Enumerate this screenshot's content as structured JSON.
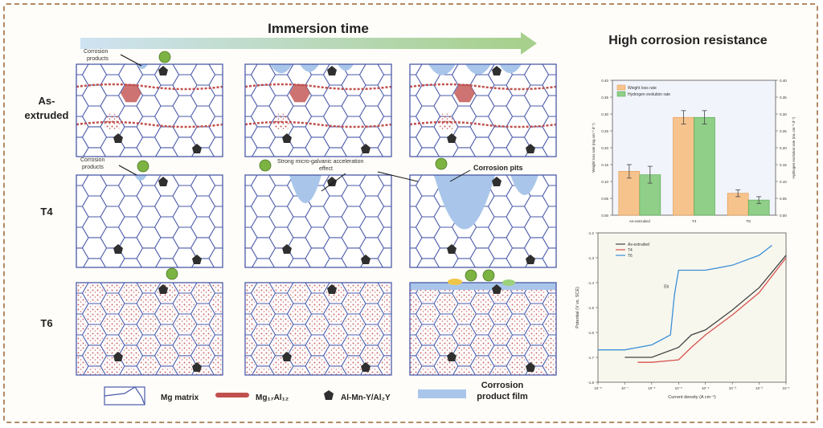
{
  "header": {
    "immersion_label": "Immersion time",
    "right_title": "High corrosion resistance"
  },
  "rows": [
    {
      "label_line1": "As-",
      "label_line2": "extruded"
    },
    {
      "label_line1": "T4",
      "label_line2": ""
    },
    {
      "label_line1": "T6",
      "label_line2": ""
    }
  ],
  "annotations": {
    "corrosion_products_top_1": "Corrosion",
    "corrosion_products_top_2": "products",
    "corrosion_products_mid_1": "Corrosion",
    "corrosion_products_mid_2": "products",
    "micro_galvanic_1": "Strong micro-galvanic acceleration",
    "micro_galvanic_2": "effect",
    "corrosion_pits": "Corrosion pits"
  },
  "legend": {
    "mg_matrix": "Mg matrix",
    "mg17al12": "Mg₁₇Al₁₂",
    "intermetallic": "Al-Mn-Y/Al₂Y",
    "film_1": "Corrosion",
    "film_2": "product  film"
  },
  "colors": {
    "grain": "#4a5aa8",
    "precipitate": "#c0504d",
    "film": "#a9c6ea",
    "particle": "#2f2f2f",
    "product_ball": "#7cb342",
    "arrow_gradient_start": "#cfe3f2",
    "arrow_gradient_end": "#a7d08c",
    "bar_weight": "#f7c38d",
    "bar_hydrogen": "#8fcf88",
    "curve_as_extruded": "#444444",
    "curve_t4": "#d9534f",
    "curve_t6": "#3c8fd6",
    "curved_arrow": "#2d6cb2"
  },
  "chart_data": [
    {
      "type": "bar",
      "categories": [
        "As-extruded",
        "T4",
        "T6"
      ],
      "series": [
        {
          "name": "Weight loss rate",
          "values": [
            0.13,
            0.29,
            0.065
          ]
        },
        {
          "name": "Hydrogen evolution rate",
          "values": [
            0.12,
            0.29,
            0.045
          ]
        }
      ],
      "errors": [
        [
          0.02,
          0.02,
          0.01
        ],
        [
          0.025,
          0.02,
          0.01
        ]
      ],
      "ylim": [
        0,
        0.4
      ],
      "yticks": [
        "0.00",
        "0.05",
        "0.10",
        "0.15",
        "0.20",
        "0.25",
        "0.30",
        "0.35",
        "0.40"
      ],
      "ylabel": "Weight loss rate (mg cm⁻² d⁻¹)",
      "ylabel_right": "Hydrogen evolution rate (mL cm⁻² d⁻¹)",
      "legend_position": "top-left"
    },
    {
      "type": "line",
      "xscale": "log",
      "xticks": [
        "10⁻⁸",
        "10⁻⁷",
        "10⁻⁶",
        "10⁻⁵",
        "10⁻⁴",
        "10⁻³",
        "10⁻²",
        "10⁻¹"
      ],
      "xlabel": "Current density (A cm⁻²)",
      "ylabel": "Potential (V vs. SCE)",
      "ylim": [
        -1.8,
        -1.2
      ],
      "yticks": [
        "-1.2",
        "-1.3",
        "-1.4",
        "-1.5",
        "-1.6",
        "-1.7",
        "-1.8"
      ],
      "annotation": "Eb",
      "series": [
        {
          "name": "As-extruded",
          "x": [
            1e-07,
            1e-06,
            1e-05,
            3e-05,
            0.0001,
            0.001,
            0.01,
            0.1
          ],
          "y": [
            -1.7,
            -1.7,
            -1.66,
            -1.61,
            -1.59,
            -1.51,
            -1.42,
            -1.29
          ]
        },
        {
          "name": "T4",
          "x": [
            3e-07,
            1e-06,
            1e-05,
            3e-05,
            0.0001,
            0.001,
            0.01,
            0.1
          ],
          "y": [
            -1.72,
            -1.72,
            -1.71,
            -1.66,
            -1.61,
            -1.53,
            -1.44,
            -1.3
          ]
        },
        {
          "name": "T6",
          "x": [
            1e-08,
            1e-07,
            1e-06,
            5e-06,
            7e-06,
            1e-05,
            3e-05,
            0.0001,
            0.001,
            0.01,
            0.03
          ],
          "y": [
            -1.67,
            -1.67,
            -1.65,
            -1.61,
            -1.45,
            -1.35,
            -1.35,
            -1.35,
            -1.33,
            -1.29,
            -1.25
          ]
        }
      ],
      "legend_position": "top-left"
    }
  ]
}
